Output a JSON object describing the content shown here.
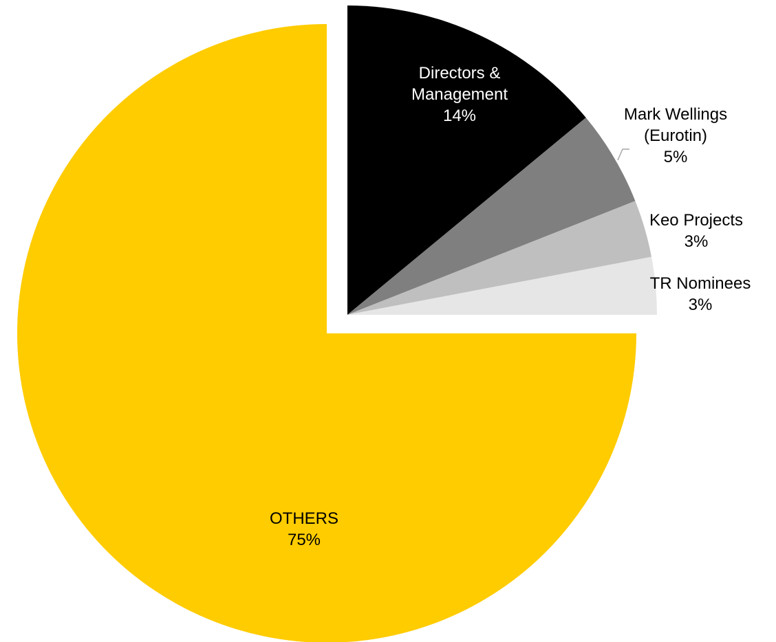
{
  "chart_data": {
    "type": "pie",
    "slices": [
      {
        "label_lines": [
          "Directors &",
          "Management"
        ],
        "pct_label": "14%",
        "value": 14,
        "color": "#000000",
        "label_color": "#ffffff"
      },
      {
        "label_lines": [
          "Mark Wellings",
          "(Eurotin)"
        ],
        "pct_label": "5%",
        "value": 5,
        "color": "#7f7f7f",
        "label_color": "#000000"
      },
      {
        "label_lines": [
          "Keo Projects"
        ],
        "pct_label": "3%",
        "value": 3,
        "color": "#bfbfbf",
        "label_color": "#000000"
      },
      {
        "label_lines": [
          "TR Nominees"
        ],
        "pct_label": "3%",
        "value": 3,
        "color": "#e7e6e6",
        "label_color": "#000000"
      },
      {
        "label_lines": [
          "OTHERS"
        ],
        "pct_label": "75%",
        "value": 75,
        "color": "#ffcc00",
        "label_color": "#000000"
      }
    ],
    "start_angle": "12 o'clock",
    "direction": "clockwise",
    "exploded_slices": [
      "Directors & Management",
      "Mark Wellings (Eurotin)",
      "Keo Projects",
      "TR Nominees"
    ],
    "legend": "none"
  }
}
